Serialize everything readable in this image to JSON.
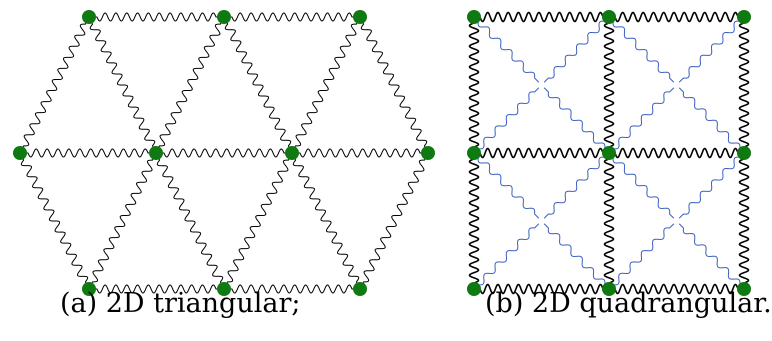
{
  "captions": {
    "a": "(a) 2D triangular;",
    "b": "(b) 2D quadrangular."
  },
  "colors": {
    "spring_black": "#000000",
    "spring_blue": "#3b5fc0",
    "node": "#0f7a12",
    "background": "#ffffff"
  }
}
